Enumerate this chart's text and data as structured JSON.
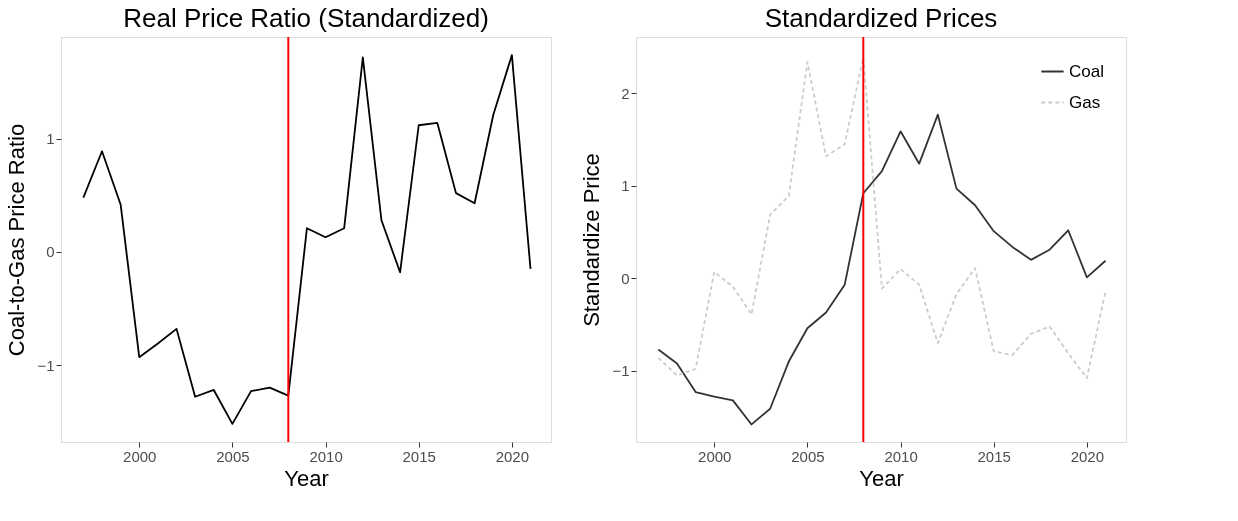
{
  "chart_data": [
    {
      "type": "line",
      "title": "Real Price Ratio (Standardized)",
      "xlabel": "Year",
      "ylabel": "Coal-to-Gas Price Ratio",
      "x": [
        1997,
        1998,
        1999,
        2000,
        2001,
        2002,
        2003,
        2004,
        2005,
        2006,
        2007,
        2008,
        2009,
        2010,
        2011,
        2012,
        2013,
        2014,
        2015,
        2016,
        2017,
        2018,
        2019,
        2020,
        2021
      ],
      "series": [
        {
          "color": "#000000",
          "values": [
            0.48,
            0.89,
            0.42,
            -0.93,
            -0.81,
            -0.68,
            -1.28,
            -1.22,
            -1.52,
            -1.23,
            -1.2,
            -1.27,
            0.21,
            0.13,
            0.21,
            1.72,
            0.28,
            -0.18,
            1.12,
            1.14,
            0.52,
            0.43,
            1.21,
            1.74,
            -0.15
          ]
        }
      ],
      "xlim": [
        1995.8,
        2022.1
      ],
      "xticks": [
        2000,
        2005,
        2010,
        2015,
        2020
      ],
      "ylim": [
        -1.68,
        1.9
      ],
      "yticks": [
        -1,
        0,
        1
      ],
      "ref_lines": [
        {
          "axis": "x",
          "value": 2008,
          "color": "#ff0000"
        }
      ],
      "grid": false,
      "legend": false,
      "line_style": "solid",
      "marker": "none"
    },
    {
      "type": "line",
      "title": "Standardized Prices",
      "xlabel": "Year",
      "ylabel": "Standardize Price",
      "x": [
        1997,
        1998,
        1999,
        2000,
        2001,
        2002,
        2003,
        2004,
        2005,
        2006,
        2007,
        2008,
        2009,
        2010,
        2011,
        2012,
        2013,
        2014,
        2015,
        2016,
        2017,
        2018,
        2019,
        2020,
        2021
      ],
      "series": [
        {
          "name": "Coal",
          "color": "#333333",
          "line_style": "solid",
          "values": [
            -0.77,
            -0.92,
            -1.23,
            -1.28,
            -1.32,
            -1.58,
            -1.41,
            -0.9,
            -0.54,
            -0.37,
            -0.07,
            0.92,
            1.16,
            1.59,
            1.24,
            1.77,
            0.97,
            0.79,
            0.51,
            0.34,
            0.2,
            0.31,
            0.52,
            0.01,
            0.19
          ]
        },
        {
          "name": "Gas",
          "color": "#cccccc",
          "line_style": "dashed",
          "values": [
            -0.86,
            -1.05,
            -0.98,
            0.07,
            -0.09,
            -0.39,
            0.69,
            0.89,
            2.34,
            1.32,
            1.45,
            2.39,
            -0.11,
            0.1,
            -0.07,
            -0.7,
            -0.17,
            0.11,
            -0.79,
            -0.83,
            -0.6,
            -0.52,
            -0.81,
            -1.08,
            -0.14
          ]
        }
      ],
      "xlim": [
        1995.8,
        2022.1
      ],
      "xticks": [
        2000,
        2005,
        2010,
        2015,
        2020
      ],
      "ylim": [
        -1.77,
        2.61
      ],
      "yticks": [
        -1,
        0,
        1,
        2
      ],
      "ref_lines": [
        {
          "axis": "x",
          "value": 2008,
          "color": "#ff0000"
        }
      ],
      "grid": false,
      "legend": "top right",
      "marker": "none"
    }
  ]
}
